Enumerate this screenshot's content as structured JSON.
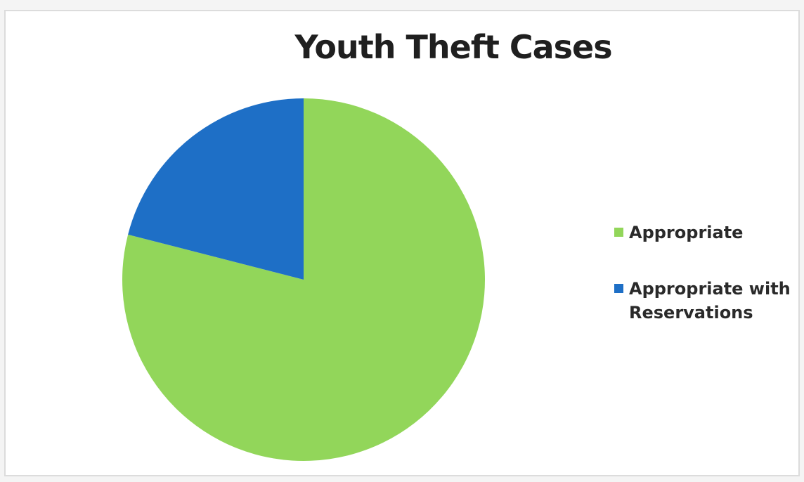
{
  "chart_data": {
    "type": "pie",
    "title": "Youth Theft Cases",
    "legend_position": "right",
    "slices": [
      {
        "label": "Appropriate",
        "value": 79,
        "color": "#92d65a"
      },
      {
        "label": "Appropriate with Reservations",
        "value": 21,
        "color": "#1e6fc6"
      }
    ]
  }
}
